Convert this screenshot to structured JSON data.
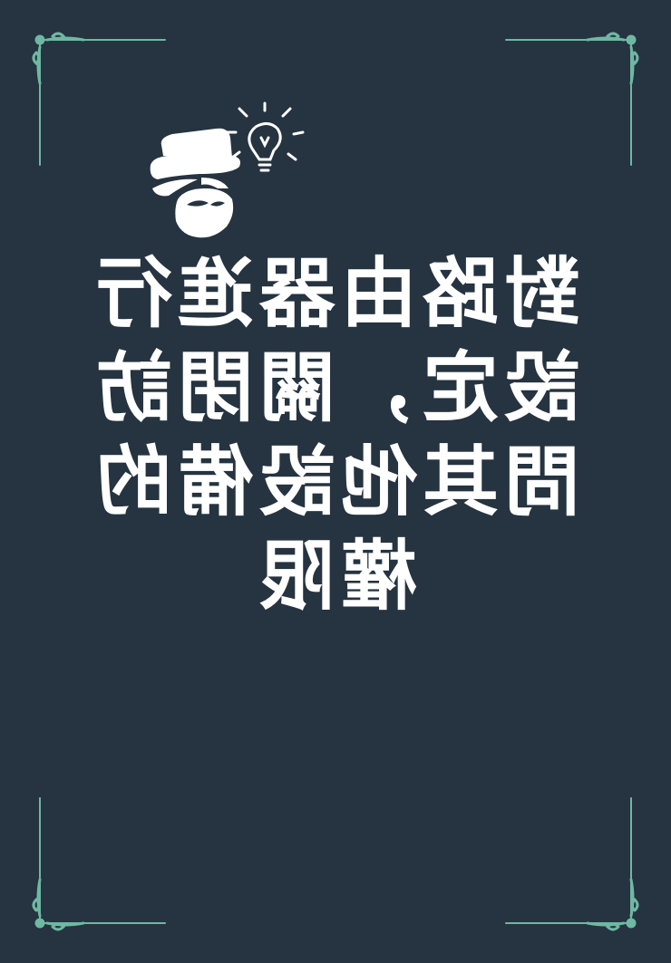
{
  "colors": {
    "background": "#263340",
    "ornament": "#6fb8a3",
    "text": "#ffffff"
  },
  "logo": {
    "icon": "detective-with-lightbulb-icon"
  },
  "title": {
    "lines": [
      "對路由器進行",
      "設定，關閉訪",
      "問其他設備的",
      "權限"
    ]
  }
}
